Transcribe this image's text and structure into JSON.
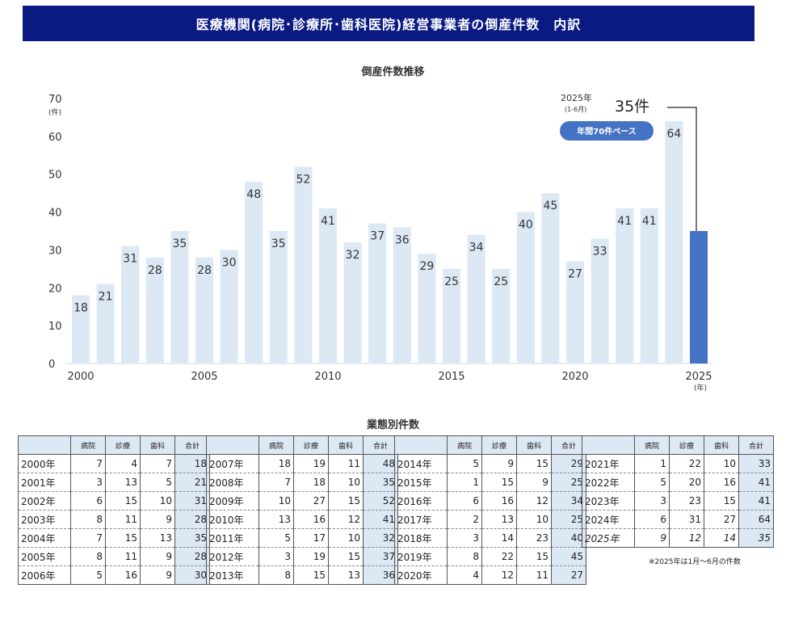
{
  "header": {
    "title": "医療機関(病院･診療所･歯科医院)経営事業者の倒産件数　内訳"
  },
  "chart_data": {
    "type": "bar",
    "title": "倒産件数推移",
    "ylabel": "(件)",
    "xlabel": "(年)",
    "ylim": [
      0,
      70
    ],
    "yticks": [
      0,
      10,
      20,
      30,
      40,
      50,
      60,
      70
    ],
    "xticks": [
      "2000",
      "2005",
      "2010",
      "2015",
      "2020",
      "2025"
    ],
    "categories": [
      "2000",
      "2001",
      "2002",
      "2003",
      "2004",
      "2005",
      "2006",
      "2007",
      "2008",
      "2009",
      "2010",
      "2011",
      "2012",
      "2013",
      "2014",
      "2015",
      "2016",
      "2017",
      "2018",
      "2019",
      "2020",
      "2021",
      "2022",
      "2023",
      "2024",
      "2025"
    ],
    "values": [
      18,
      21,
      31,
      28,
      35,
      28,
      30,
      48,
      35,
      52,
      41,
      32,
      37,
      36,
      29,
      25,
      34,
      25,
      40,
      45,
      27,
      33,
      41,
      41,
      64,
      35
    ],
    "bar_color": "#dde8f5",
    "highlight_color": "#4472c4",
    "annotation": {
      "year_label": "2025年",
      "period_label": "(1-6月)",
      "value_label": "35件",
      "pace_badge": "年間70件ペース"
    }
  },
  "tables": {
    "title": "業態別件数",
    "headers": [
      "",
      "病院",
      "診療",
      "歯科",
      "合計"
    ],
    "groups": [
      [
        {
          "year": "2000年",
          "h": 7,
          "c": 4,
          "d": 7,
          "t": 18
        },
        {
          "year": "2001年",
          "h": 3,
          "c": 13,
          "d": 5,
          "t": 21
        },
        {
          "year": "2002年",
          "h": 6,
          "c": 15,
          "d": 10,
          "t": 31
        },
        {
          "year": "2003年",
          "h": 8,
          "c": 11,
          "d": 9,
          "t": 28
        },
        {
          "year": "2004年",
          "h": 7,
          "c": 15,
          "d": 13,
          "t": 35
        },
        {
          "year": "2005年",
          "h": 8,
          "c": 11,
          "d": 9,
          "t": 28
        },
        {
          "year": "2006年",
          "h": 5,
          "c": 16,
          "d": 9,
          "t": 30
        }
      ],
      [
        {
          "year": "2007年",
          "h": 18,
          "c": 19,
          "d": 11,
          "t": 48
        },
        {
          "year": "2008年",
          "h": 7,
          "c": 18,
          "d": 10,
          "t": 35
        },
        {
          "year": "2009年",
          "h": 10,
          "c": 27,
          "d": 15,
          "t": 52
        },
        {
          "year": "2010年",
          "h": 13,
          "c": 16,
          "d": 12,
          "t": 41
        },
        {
          "year": "2011年",
          "h": 5,
          "c": 17,
          "d": 10,
          "t": 32
        },
        {
          "year": "2012年",
          "h": 3,
          "c": 19,
          "d": 15,
          "t": 37
        },
        {
          "year": "2013年",
          "h": 8,
          "c": 15,
          "d": 13,
          "t": 36
        }
      ],
      [
        {
          "year": "2014年",
          "h": 5,
          "c": 9,
          "d": 15,
          "t": 29
        },
        {
          "year": "2015年",
          "h": 1,
          "c": 15,
          "d": 9,
          "t": 25
        },
        {
          "year": "2016年",
          "h": 6,
          "c": 16,
          "d": 12,
          "t": 34
        },
        {
          "year": "2017年",
          "h": 2,
          "c": 13,
          "d": 10,
          "t": 25
        },
        {
          "year": "2018年",
          "h": 3,
          "c": 14,
          "d": 23,
          "t": 40
        },
        {
          "year": "2019年",
          "h": 8,
          "c": 22,
          "d": 15,
          "t": 45
        },
        {
          "year": "2020年",
          "h": 4,
          "c": 12,
          "d": 11,
          "t": 27
        }
      ],
      [
        {
          "year": "2021年",
          "h": 1,
          "c": 22,
          "d": 10,
          "t": 33
        },
        {
          "year": "2022年",
          "h": 5,
          "c": 20,
          "d": 16,
          "t": 41
        },
        {
          "year": "2023年",
          "h": 3,
          "c": 23,
          "d": 15,
          "t": 41
        },
        {
          "year": "2024年",
          "h": 6,
          "c": 31,
          "d": 27,
          "t": 64
        },
        {
          "year": "2025年",
          "h": 9,
          "c": 12,
          "d": 14,
          "t": 35,
          "italic": true
        }
      ]
    ],
    "note": "※2025年は1月～6月の件数"
  }
}
